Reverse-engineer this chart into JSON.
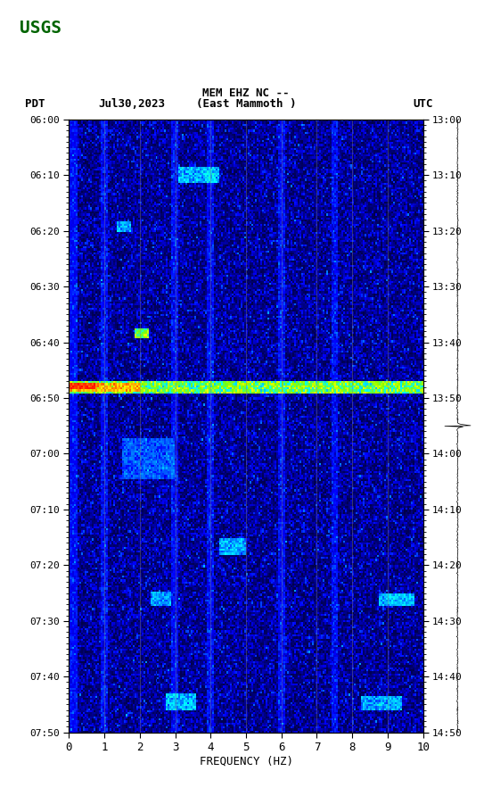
{
  "title_line1": "MEM EHZ NC --",
  "title_line2": "(East Mammoth )",
  "label_left": "PDT",
  "label_date": "Jul30,2023",
  "label_right": "UTC",
  "ylabel_left_times": [
    "06:00",
    "06:10",
    "06:20",
    "06:30",
    "06:40",
    "06:50",
    "07:00",
    "07:10",
    "07:20",
    "07:30",
    "07:40",
    "07:50"
  ],
  "ylabel_right_times": [
    "13:00",
    "13:10",
    "13:20",
    "13:30",
    "13:40",
    "13:50",
    "14:00",
    "14:10",
    "14:20",
    "14:30",
    "14:40",
    "14:50"
  ],
  "xlabel": "FREQUENCY (HZ)",
  "xmin": 0,
  "xmax": 10,
  "xticks": [
    0,
    1,
    2,
    3,
    4,
    5,
    6,
    7,
    8,
    9,
    10
  ],
  "freq_resolution": 200,
  "time_resolution": 300,
  "noise_floor": 0.02,
  "background_color": "#000080",
  "fig_width": 5.52,
  "fig_height": 8.92
}
